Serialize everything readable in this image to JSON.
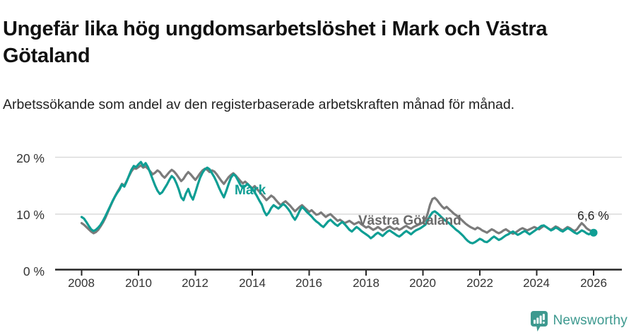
{
  "header": {
    "title": "Ungefär lika hög ungdomsarbetslöshet i Mark och Västra Götaland",
    "subtitle": "Arbetssökande som andel av den registerbaserade arbetskraften månad för månad."
  },
  "footer": {
    "brand": "Newsworthy",
    "logo_icon": "newsworthy-speech-bubble-bar-chart-icon",
    "brand_color": "#3d998f"
  },
  "chart_data": {
    "type": "line",
    "title": "Ungefär lika hög ungdomsarbetslöshet i Mark och Västra Götaland",
    "subtitle": "Arbetssökande som andel av den registerbaserade arbetskraften månad för månad.",
    "unit": "%",
    "x_frequency": "monthly",
    "x_start": "2008-01",
    "x_end": "2026-01",
    "x_tick_labels": [
      "2008",
      "2010",
      "2012",
      "2014",
      "2016",
      "2018",
      "2020",
      "2022",
      "2024",
      "2026"
    ],
    "y_tick_labels": [
      "0 %",
      "10 %",
      "20 %"
    ],
    "ylim": [
      0,
      21
    ],
    "grid": "horizontal",
    "legend_position": "inline-labels",
    "series": [
      {
        "name": "Mark",
        "color": "#0f9e94",
        "end_label": "6,6 %",
        "end_value": 6.6,
        "values": [
          9.4,
          9.1,
          8.5,
          7.8,
          7.2,
          6.9,
          7.1,
          7.5,
          8.0,
          8.7,
          9.5,
          10.4,
          11.3,
          12.2,
          13.0,
          13.7,
          14.3,
          15.2,
          14.8,
          15.7,
          16.8,
          17.8,
          18.5,
          18.3,
          18.8,
          19.2,
          18.5,
          19.0,
          18.3,
          17.2,
          16.1,
          15.0,
          14.1,
          13.5,
          13.8,
          14.5,
          15.2,
          16.0,
          16.7,
          16.3,
          15.4,
          14.3,
          12.9,
          12.4,
          13.6,
          14.4,
          13.2,
          12.5,
          13.8,
          15.2,
          16.4,
          17.3,
          17.9,
          18.2,
          17.9,
          17.2,
          16.5,
          15.6,
          14.6,
          13.7,
          12.9,
          14.0,
          15.3,
          16.4,
          17.0,
          16.7,
          15.9,
          15.1,
          14.6,
          14.9,
          15.3,
          14.8,
          14.4,
          13.8,
          13.1,
          12.3,
          11.6,
          10.4,
          9.7,
          10.2,
          11.0,
          11.5,
          11.2,
          10.9,
          11.3,
          11.7,
          11.4,
          10.9,
          10.3,
          9.5,
          8.9,
          9.6,
          10.5,
          11.2,
          10.8,
          10.3,
          9.9,
          9.5,
          9.0,
          8.6,
          8.3,
          7.9,
          7.6,
          8.1,
          8.6,
          8.9,
          8.5,
          8.1,
          7.8,
          8.2,
          8.5,
          8.1,
          7.6,
          7.1,
          6.8,
          7.2,
          7.6,
          7.3,
          6.9,
          6.6,
          6.3,
          6.0,
          5.6,
          5.9,
          6.3,
          6.6,
          6.3,
          6.0,
          6.4,
          6.8,
          7.0,
          6.7,
          6.4,
          6.1,
          5.9,
          6.2,
          6.6,
          6.9,
          6.6,
          6.3,
          6.7,
          7.0,
          7.2,
          7.4,
          7.7,
          8.0,
          8.8,
          9.6,
          10.2,
          10.4,
          10.1,
          9.7,
          9.3,
          8.9,
          8.6,
          8.3,
          7.9,
          7.5,
          7.1,
          6.8,
          6.4,
          6.0,
          5.5,
          5.1,
          4.8,
          4.7,
          4.9,
          5.2,
          5.5,
          5.3,
          5.0,
          4.9,
          5.2,
          5.6,
          5.9,
          5.6,
          5.3,
          5.5,
          5.8,
          6.1,
          6.3,
          6.6,
          6.8,
          6.5,
          6.2,
          6.4,
          6.7,
          6.9,
          6.6,
          6.3,
          6.6,
          6.9,
          7.2,
          7.5,
          7.8,
          7.9,
          7.6,
          7.3,
          7.0,
          7.2,
          7.5,
          7.3,
          7.0,
          6.8,
          7.1,
          7.4,
          7.2,
          6.9,
          6.6,
          6.4,
          6.7,
          7.0,
          6.8,
          6.5,
          6.3,
          6.5,
          6.6
        ]
      },
      {
        "name": "Västra Götaland",
        "color": "#7b7b7b",
        "values": [
          8.3,
          8.0,
          7.6,
          7.2,
          6.8,
          6.5,
          6.7,
          7.1,
          7.7,
          8.4,
          9.2,
          10.2,
          11.2,
          12.1,
          13.0,
          13.8,
          14.5,
          15.3,
          15.0,
          15.8,
          16.7,
          17.5,
          18.1,
          18.0,
          18.3,
          18.6,
          18.2,
          18.4,
          18.0,
          17.5,
          17.0,
          17.3,
          17.7,
          17.4,
          16.8,
          16.4,
          16.9,
          17.4,
          17.8,
          17.5,
          17.0,
          16.4,
          15.8,
          16.2,
          16.9,
          17.4,
          17.0,
          16.5,
          16.0,
          16.6,
          17.2,
          17.7,
          18.0,
          17.8,
          17.4,
          17.7,
          17.5,
          17.0,
          16.4,
          15.8,
          15.3,
          15.9,
          16.5,
          16.9,
          17.2,
          16.8,
          16.3,
          15.8,
          15.4,
          15.7,
          15.3,
          14.9,
          14.5,
          14.9,
          14.4,
          13.9,
          13.4,
          12.9,
          12.4,
          12.8,
          13.2,
          12.9,
          12.4,
          11.9,
          11.5,
          11.9,
          12.2,
          11.8,
          11.4,
          10.9,
          10.4,
          10.8,
          11.2,
          11.5,
          11.1,
          10.7,
          10.3,
          10.6,
          10.2,
          9.8,
          9.9,
          10.2,
          9.8,
          9.4,
          9.7,
          9.9,
          9.5,
          9.1,
          8.7,
          8.9,
          8.6,
          8.3,
          8.5,
          8.7,
          8.4,
          8.1,
          8.3,
          8.5,
          8.1,
          7.8,
          7.5,
          7.7,
          7.4,
          7.1,
          7.3,
          7.6,
          7.3,
          7.0,
          7.2,
          7.5,
          7.7,
          7.4,
          7.2,
          7.4,
          7.1,
          7.3,
          7.6,
          7.8,
          7.5,
          7.3,
          7.6,
          7.8,
          8.0,
          8.2,
          8.4,
          8.8,
          10.0,
          11.6,
          12.6,
          12.8,
          12.4,
          11.8,
          11.3,
          10.9,
          11.2,
          10.8,
          10.4,
          10.0,
          9.7,
          9.4,
          9.0,
          8.6,
          8.2,
          7.9,
          7.6,
          7.4,
          7.2,
          7.5,
          7.3,
          7.0,
          6.8,
          6.6,
          6.9,
          7.2,
          7.0,
          6.7,
          6.5,
          6.7,
          7.0,
          7.2,
          6.9,
          6.6,
          6.4,
          6.6,
          6.9,
          7.2,
          7.4,
          7.2,
          7.0,
          7.2,
          7.4,
          7.6,
          7.4,
          7.2,
          7.5,
          7.8,
          7.6,
          7.3,
          7.1,
          7.4,
          7.7,
          7.5,
          7.2,
          7.0,
          7.3,
          7.6,
          7.4,
          7.1,
          6.9,
          7.2,
          7.8,
          8.3,
          7.9,
          7.4,
          7.1,
          6.9,
          6.9
        ]
      }
    ]
  }
}
